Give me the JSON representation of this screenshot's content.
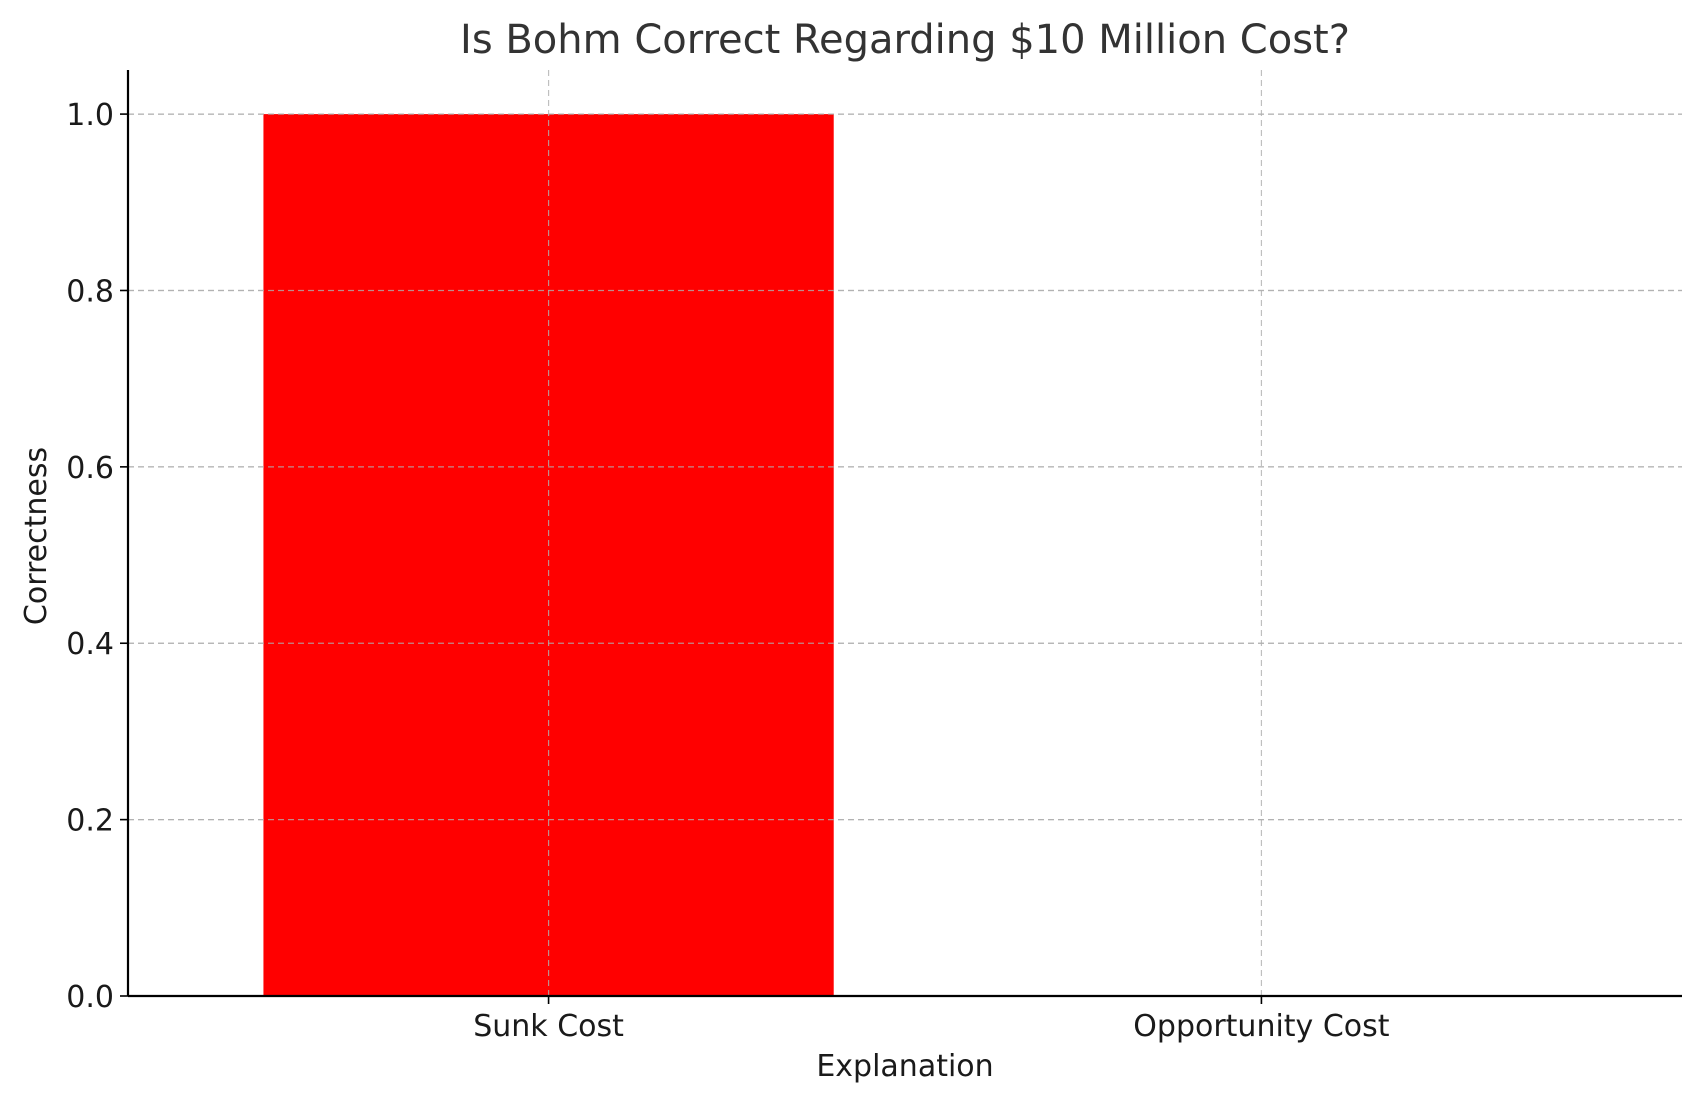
{
  "chart_data": {
    "type": "bar",
    "title": "Is Bohm Correct Regarding $10 Million Cost?",
    "xlabel": "Explanation",
    "ylabel": "Correctness",
    "categories": [
      "Sunk Cost",
      "Opportunity Cost"
    ],
    "values": [
      1,
      0
    ],
    "colors": [
      "#ff0000",
      "#ff0000"
    ],
    "ylim": [
      0,
      1.05
    ],
    "yticks": [
      "0.0",
      "0.2",
      "0.4",
      "0.6",
      "0.8",
      "1.0"
    ],
    "grid": true,
    "legend": "none"
  }
}
